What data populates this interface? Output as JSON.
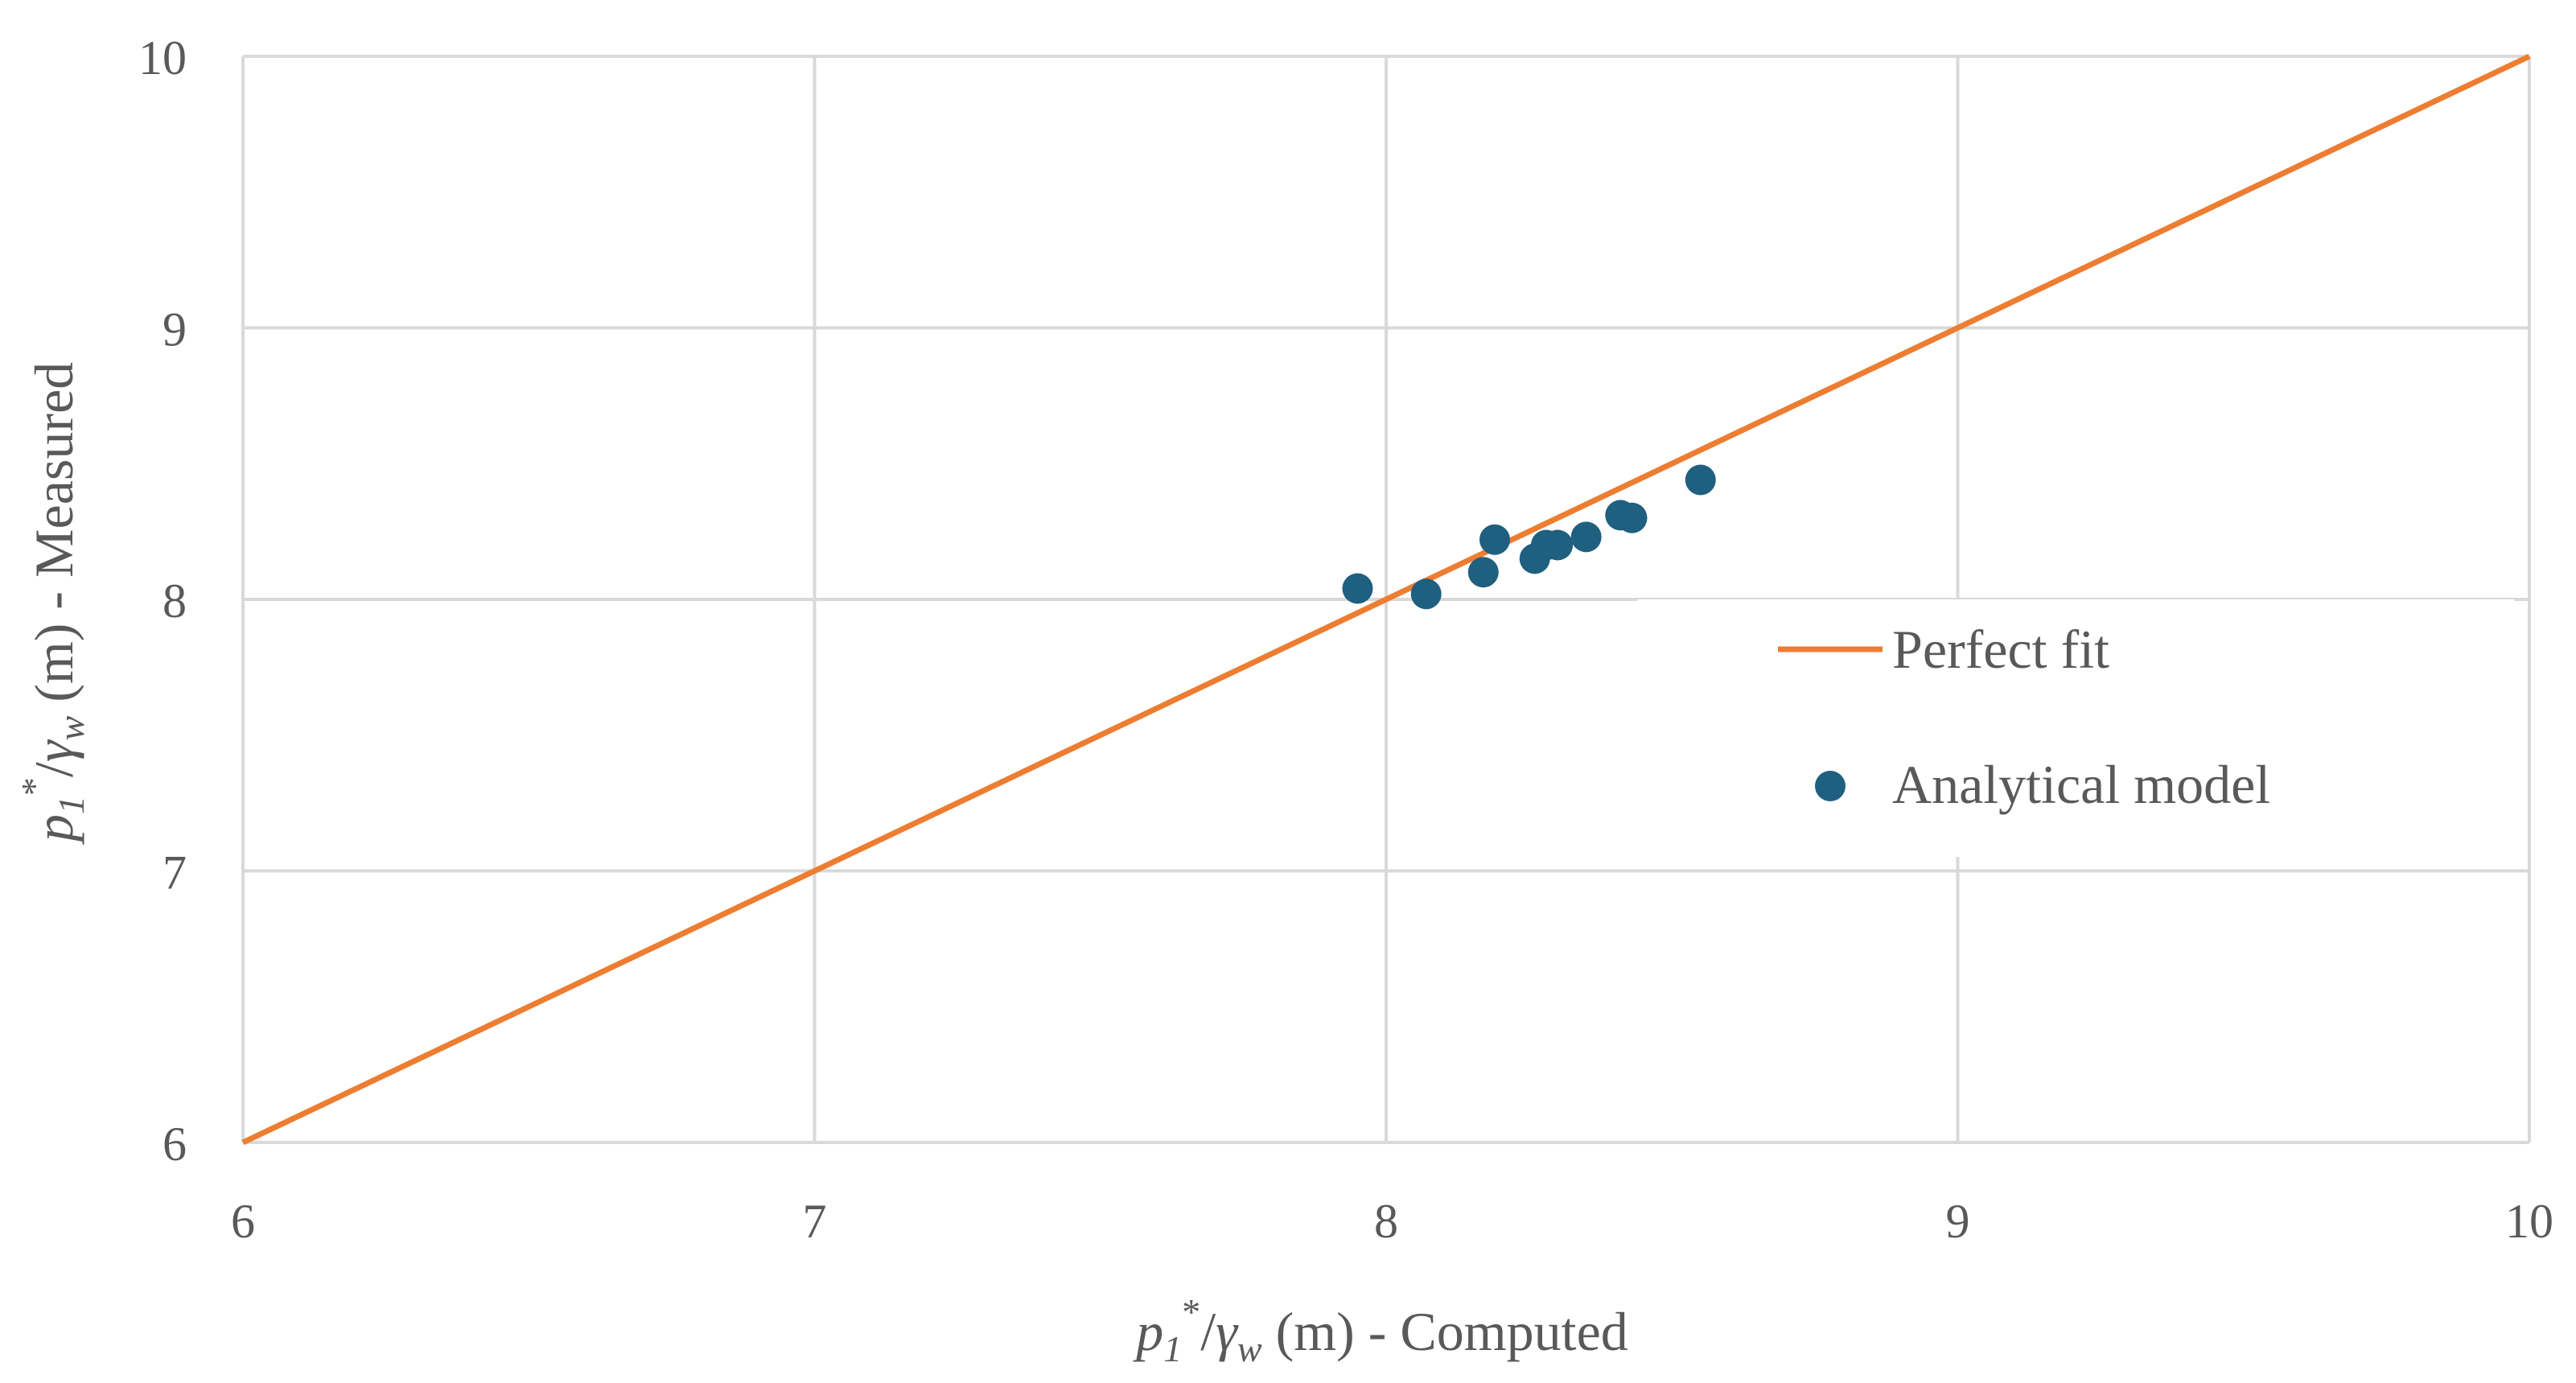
{
  "chart_data": {
    "type": "scatter",
    "xlim": [
      6,
      10
    ],
    "ylim": [
      6,
      10
    ],
    "x_ticks": [
      "6",
      "7",
      "8",
      "9",
      "10"
    ],
    "y_ticks": [
      "6",
      "7",
      "8",
      "9",
      "10"
    ],
    "grid": true,
    "xlabel": {
      "var": "p",
      "sub": "1",
      "sup": "*",
      "slash": "/",
      "gamma": "γ",
      "gamma_sub": "w",
      "rest": " (m) - Computed"
    },
    "ylabel": {
      "var": "p",
      "sub": "1",
      "sup": "*",
      "slash": "/",
      "gamma": "γ",
      "gamma_sub": "w",
      "rest": " (m) - Measured"
    },
    "legend_position": "center-right",
    "series": [
      {
        "name": "Perfect fit",
        "kind": "line",
        "color": "#ed7d31",
        "x": [
          6,
          10
        ],
        "y": [
          6,
          10
        ]
      },
      {
        "name": "Analytical model",
        "kind": "scatter",
        "color": "#1f5f7f",
        "x": [
          7.95,
          8.07,
          8.17,
          8.19,
          8.26,
          8.28,
          8.3,
          8.35,
          8.41,
          8.43,
          8.55
        ],
        "y": [
          8.04,
          8.02,
          8.1,
          8.22,
          8.15,
          8.2,
          8.2,
          8.23,
          8.31,
          8.3,
          8.44
        ]
      }
    ]
  }
}
